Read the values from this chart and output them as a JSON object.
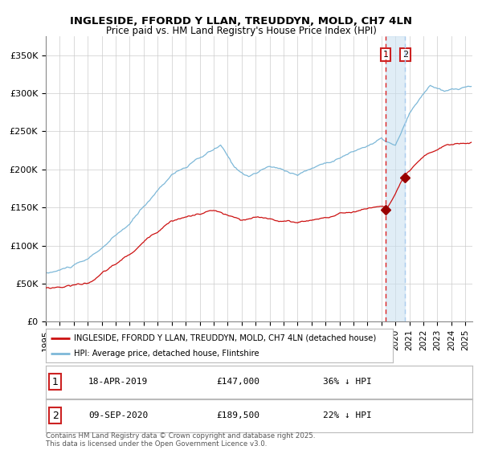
{
  "title1": "INGLESIDE, FFORDD Y LLAN, TREUDDYN, MOLD, CH7 4LN",
  "title2": "Price paid vs. HM Land Registry's House Price Index (HPI)",
  "ylabel_ticks": [
    "£0",
    "£50K",
    "£100K",
    "£150K",
    "£200K",
    "£250K",
    "£300K",
    "£350K"
  ],
  "ytick_values": [
    0,
    50000,
    100000,
    150000,
    200000,
    250000,
    300000,
    350000
  ],
  "ylim": [
    0,
    375000
  ],
  "xlim_start": 1995.0,
  "xlim_end": 2025.5,
  "hpi_color": "#7db8d8",
  "price_color": "#cc1111",
  "vline1_color": "#dd2222",
  "vline2_color": "#aaccee",
  "span_color": "#c8dff0",
  "marker_color": "#990000",
  "vline1_x": 2019.29,
  "vline2_x": 2020.69,
  "marker1_x": 2019.29,
  "marker1_y": 147000,
  "marker2_x": 2020.69,
  "marker2_y": 189500,
  "legend_label1": "INGLESIDE, FFORDD Y LLAN, TREUDDYN, MOLD, CH7 4LN (detached house)",
  "legend_label2": "HPI: Average price, detached house, Flintshire",
  "table_row1": [
    "1",
    "18-APR-2019",
    "£147,000",
    "36% ↓ HPI"
  ],
  "table_row2": [
    "2",
    "09-SEP-2020",
    "£189,500",
    "22% ↓ HPI"
  ],
  "footnote": "Contains HM Land Registry data © Crown copyright and database right 2025.\nThis data is licensed under the Open Government Licence v3.0.",
  "bg_color": "#ffffff",
  "grid_color": "#cccccc"
}
